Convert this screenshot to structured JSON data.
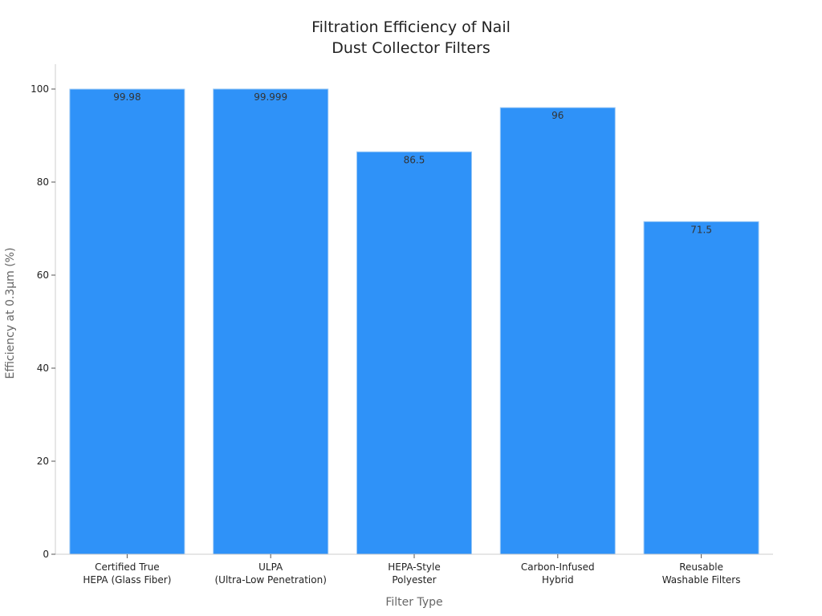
{
  "chart_data": {
    "type": "bar",
    "title": [
      "Filtration Efficiency of Nail",
      "Dust Collector Filters"
    ],
    "xlabel": "Filter Type",
    "ylabel": "Efficiency at 0.3μm (%)",
    "categories": [
      [
        "Certified True",
        "HEPA (Glass Fiber)"
      ],
      [
        "ULPA",
        "(Ultra-Low Penetration)"
      ],
      [
        "HEPA-Style",
        "Polyester"
      ],
      [
        "Carbon-Infused",
        "Hybrid"
      ],
      [
        "Reusable",
        "Washable Filters"
      ]
    ],
    "values": [
      99.98,
      99.999,
      86.5,
      96,
      71.5
    ],
    "value_labels": [
      "99.98",
      "99.999",
      "86.5",
      "96",
      "71.5"
    ],
    "ylim": [
      0,
      100
    ],
    "yticks": [
      0,
      20,
      40,
      60,
      80,
      100
    ],
    "grid": false,
    "bar_color": "#2f92f8"
  }
}
